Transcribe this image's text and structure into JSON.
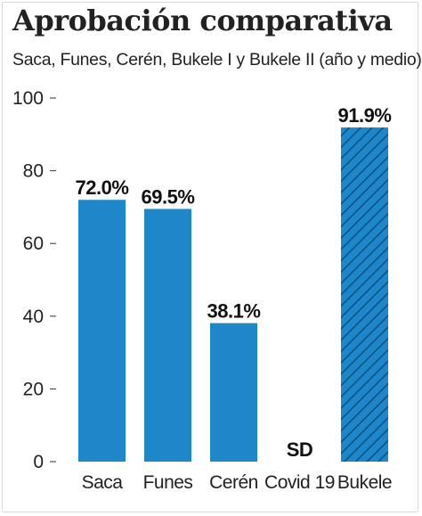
{
  "header": {
    "title": "Aprobación comparativa",
    "subtitle": "Saca, Funes, Cerén,  Bukele I y Bukele II (año y medio)"
  },
  "colors": {
    "bar": "#1d87c9",
    "hatch": "#0b4f7e",
    "text": "#222222"
  },
  "chart_data": {
    "type": "bar",
    "title": "Aprobación comparativa",
    "subtitle": "Saca, Funes, Cerén,  Bukele I y Bukele II (año y medio)",
    "categories": [
      "Saca",
      "Funes",
      "Cerén",
      "Covid 19",
      "Bukele"
    ],
    "values": [
      72.0,
      69.5,
      38.1,
      null,
      91.9
    ],
    "data_labels": [
      "72.0%",
      "69.5%",
      "38.1%",
      "SD",
      "91.9%"
    ],
    "hatched": [
      false,
      false,
      false,
      false,
      true
    ],
    "yticks": [
      "0",
      "20",
      "40",
      "60",
      "80",
      "100"
    ],
    "ylim": [
      0,
      100
    ],
    "xlabel": "",
    "ylabel": "",
    "grid": false,
    "legend": "none"
  }
}
